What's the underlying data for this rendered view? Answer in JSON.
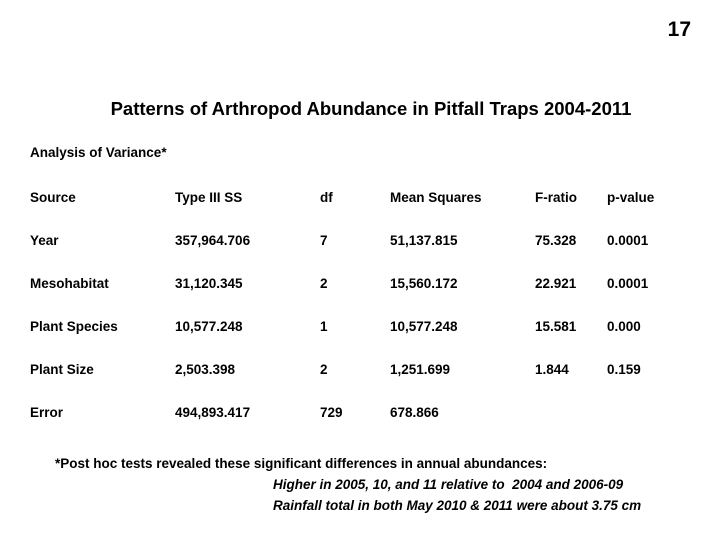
{
  "page_number": "17",
  "title": "Patterns of Arthropod Abundance in Pitfall Traps 2004-2011",
  "subtitle": "Analysis of Variance*",
  "table": {
    "columns": [
      "Source",
      "Type III SS",
      "df",
      "Mean Squares",
      "F-ratio",
      "p-value"
    ],
    "rows": [
      [
        "Year",
        "357,964.706",
        "7",
        "51,137.815",
        "75.328",
        "0.0001"
      ],
      [
        "Mesohabitat",
        "31,120.345",
        "2",
        "15,560.172",
        "22.921",
        "0.0001"
      ],
      [
        "Plant Species",
        "10,577.248",
        "1",
        "10,577.248",
        "15.581",
        "0.000"
      ],
      [
        "Plant Size",
        "2,503.398",
        "2",
        "1,251.699",
        "1.844",
        "0.159"
      ],
      [
        "Error",
        "494,893.417",
        "729",
        "678.866",
        "",
        ""
      ]
    ]
  },
  "footnote": {
    "line1": "*Post hoc tests revealed these significant differences in annual abundances:",
    "line2": "Higher in 2005, 10, and 11 relative to  2004 and 2006-09",
    "line3": "Rainfall total in both May 2010 & 2011 were about 3.75 cm"
  },
  "colors": {
    "background": "#ffffff",
    "text": "#000000"
  }
}
